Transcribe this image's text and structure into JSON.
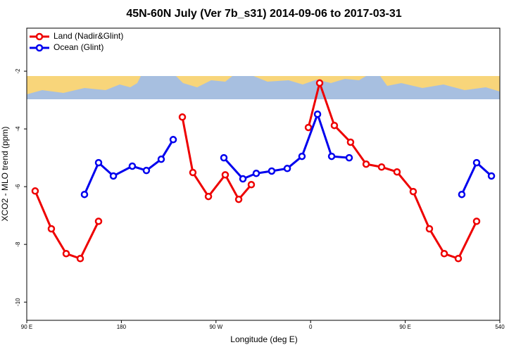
{
  "chart_data": {
    "type": "line",
    "title": "45N-60N July (Ver 7b_s31)   2014-09-06 to 2017-03-31",
    "x_label": "Longitude (deg E)",
    "y_label": "XCO2 - MLO trend (ppm)",
    "xlim": [
      90,
      540
    ],
    "xticks": [
      {
        "value": 90,
        "label": "90 E"
      },
      180,
      {
        "value": 270,
        "label": "90 W"
      },
      {
        "value": 360,
        "label": "0"
      },
      {
        "value": 450,
        "label": "90 E"
      },
      540
    ],
    "ylim": [
      -10.63,
      -0.51
    ],
    "yticks": [
      -2,
      -4,
      -6,
      -8,
      -10
    ],
    "legend": "top-left",
    "series": [
      {
        "name": "Land (Nadir&Glint)",
        "color": "#ee0000",
        "x": [
          98,
          113.4,
          127.5,
          140.9,
          158.3,
          null,
          238,
          248,
          262.8,
          278.8,
          291.6,
          303.6,
          null,
          357.9,
          368.6,
          382.6,
          398,
          412.8,
          427.5,
          442.2,
          457.6,
          473,
          487.1,
          500.5,
          517.9
        ],
        "values": [
          -6.15,
          -7.46,
          -8.32,
          -8.49,
          -7.2,
          null,
          -3.59,
          -5.51,
          -6.34,
          -5.59,
          -6.44,
          -5.93,
          null,
          -3.95,
          -2.41,
          -3.88,
          -4.46,
          -5.22,
          -5.32,
          -5.49,
          -6.17,
          -7.46,
          -8.32,
          -8.49,
          -7.2
        ]
      },
      {
        "name": "Ocean (Glint)",
        "color": "#0000ee",
        "x": [
          144.9,
          158.3,
          172.4,
          190.4,
          203.8,
          217.9,
          229.3,
          null,
          277.5,
          295.6,
          308.3,
          323,
          337.8,
          351.8,
          366.6,
          380,
          396.7,
          null,
          503.8,
          517.9,
          532
        ],
        "values": [
          -6.27,
          -5.17,
          -5.63,
          -5.29,
          -5.44,
          -5.05,
          -4.37,
          null,
          -5.0,
          -5.73,
          -5.54,
          -5.46,
          -5.37,
          -4.95,
          -3.49,
          -4.95,
          -5.0,
          null,
          -6.27,
          -5.17,
          -5.63
        ]
      }
    ]
  }
}
